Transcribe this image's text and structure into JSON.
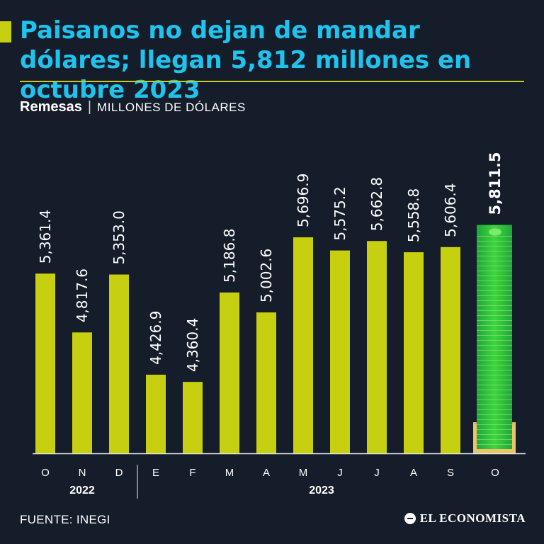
{
  "header": {
    "title": "Paisanos no dejan de mandar dólares; llegan 5,812 millones en octubre 2023",
    "subtitle_strong": "Remesas",
    "subtitle_separator": "|",
    "subtitle_unit": "MILLONES DE DÓLARES"
  },
  "footer": {
    "source": "FUENTE: INEGI",
    "brand": "EL ECONOMISTA"
  },
  "colors": {
    "bar": "#c6cf10",
    "highlight_bar": "#3ed63a",
    "title": "#1ec3ee",
    "background": "#151c2a",
    "text": "#ffffff"
  },
  "chart_data": {
    "type": "bar",
    "categories": [
      "O",
      "N",
      "D",
      "E",
      "F",
      "M",
      "A",
      "M",
      "J",
      "J",
      "A",
      "S",
      "O"
    ],
    "values": [
      5361.4,
      4817.6,
      5353.0,
      4426.9,
      4360.4,
      5186.8,
      5002.6,
      5696.9,
      5575.2,
      5662.8,
      5558.8,
      5606.4,
      5811.5
    ],
    "labels": [
      "5,361.4",
      "4,817.6",
      "5,353.0",
      "4,426.9",
      "4,360.4",
      "5,186.8",
      "5,002.6",
      "5,696.9",
      "5,575.2",
      "5,662.8",
      "5,558.8",
      "5,606.4",
      "5,811.5"
    ],
    "year_groups": [
      {
        "label": "2022",
        "start": 0,
        "end": 2
      },
      {
        "label": "2023",
        "start": 3,
        "end": 12
      }
    ],
    "highlight_index": 12,
    "ylim": [
      3700,
      5900
    ],
    "grid": false,
    "legend": "none"
  }
}
